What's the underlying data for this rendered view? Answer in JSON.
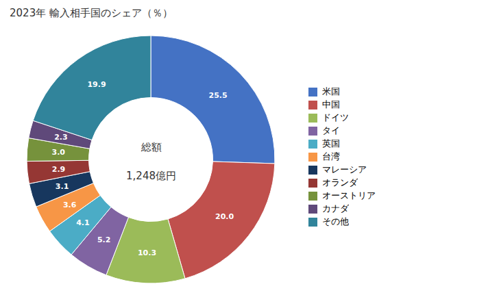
{
  "chart_data": {
    "type": "donut",
    "title": "2023年 輸入相手国のシェア（％）",
    "annotations": [
      "総額",
      "1,248億円"
    ],
    "categories": [
      "米国",
      "中国",
      "ドイツ",
      "タイ",
      "英国",
      "台湾",
      "マレーシア",
      "オランダ",
      "オーストリア",
      "カナダ",
      "その他"
    ],
    "values": [
      25.5,
      20.0,
      10.3,
      5.2,
      4.1,
      3.6,
      3.1,
      2.9,
      3.0,
      2.3,
      19.9
    ],
    "value_labels": [
      "25.5",
      "20.0",
      "10.3",
      "5.2",
      "4.1",
      "3.6",
      "3.1",
      "2.9",
      "3.0",
      "2.3",
      "19.9"
    ],
    "colors": [
      "#4472C4",
      "#C0504D",
      "#9BBB59",
      "#8064A2",
      "#4BACC6",
      "#F79646",
      "#17375E",
      "#953734",
      "#76923C",
      "#5F497A",
      "#31849B"
    ],
    "data_labels": true,
    "legend": "right"
  }
}
